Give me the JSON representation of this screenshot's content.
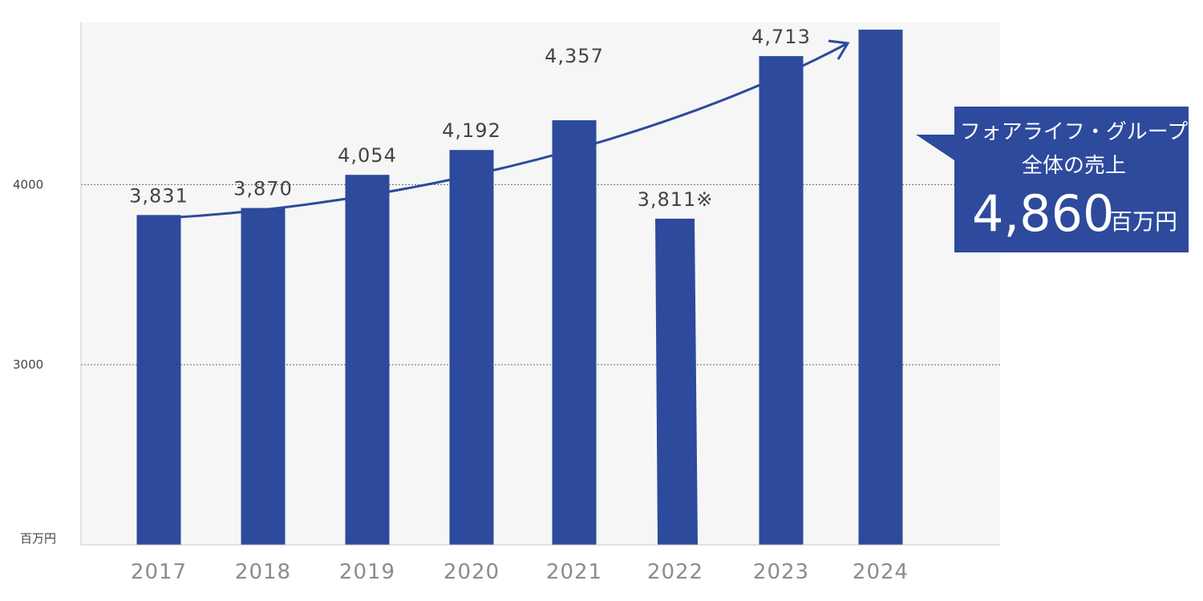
{
  "chart_data": {
    "type": "bar",
    "categories": [
      "2017",
      "2018",
      "2019",
      "2020",
      "2021",
      "2022",
      "2023",
      "2024"
    ],
    "values": [
      3831,
      3870,
      4054,
      4192,
      4357,
      3811,
      4713,
      4860
    ],
    "data_labels": [
      "3,831",
      "3,870",
      "4,054",
      "4,192",
      "4,357",
      "3,811※",
      "4,713",
      ""
    ],
    "y_unit_label": "百万円",
    "yticks": [
      {
        "value": 3000,
        "label": "3000"
      },
      {
        "value": 4000,
        "label": "4000"
      }
    ],
    "ylim": [
      2000,
      4900
    ],
    "grid": "dotted horizontal at 3000 and 4000",
    "bar_color": "#2d4a9c",
    "plot_background": "#f5f6f5",
    "trend_arrow": "upward curved arrow from 2017 toward 2024",
    "callout": {
      "line1": "フォアライフ・グループ",
      "line2": "全体の売上",
      "value": "4,860",
      "unit": "百万円",
      "color": "#2d4a9c"
    }
  }
}
